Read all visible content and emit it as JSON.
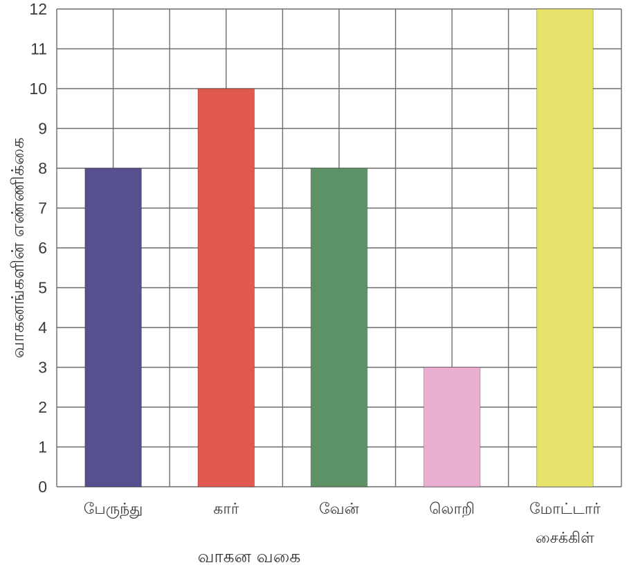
{
  "chart_data": {
    "type": "bar",
    "title": "",
    "xlabel": "வாகன வகை",
    "ylabel": "வாகனங்களின் எண்ணிக்கை",
    "categories": [
      [
        "பேருந்து"
      ],
      [
        "கார்"
      ],
      [
        "வேன்"
      ],
      [
        "லொறி"
      ],
      [
        "மோட்டார்",
        "சைக்கிள்"
      ]
    ],
    "values": [
      8,
      10,
      8,
      3,
      12
    ],
    "ylim": [
      0,
      12
    ],
    "yticks": [
      "0",
      "1",
      "2",
      "3",
      "4",
      "5",
      "6",
      "7",
      "8",
      "9",
      "10",
      "11",
      "12"
    ],
    "grid": true,
    "legend": "none",
    "colors": [
      "#57508f",
      "#e05a50",
      "#5c9265",
      "#ebaed3",
      "#e6e36d"
    ],
    "grid_color": "#6b6b6b"
  }
}
